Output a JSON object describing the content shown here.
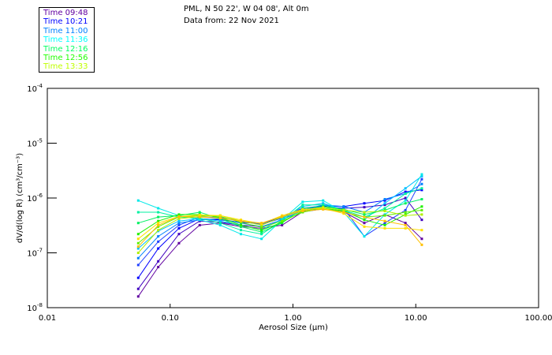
{
  "header": {
    "location": "PML, N 50 22', W 04 08', Alt 0m",
    "date_line": "Data from: 22 Nov 2021"
  },
  "legend": [
    {
      "label": "Time 09:48",
      "color": "#6000a0"
    },
    {
      "label": "Time 10:21",
      "color": "#0000ff"
    },
    {
      "label": "Time 11:00",
      "color": "#0080ff"
    },
    {
      "label": "Time 11:36",
      "color": "#00ffff"
    },
    {
      "label": "Time 12:16",
      "color": "#00ff60"
    },
    {
      "label": "Time 12:56",
      "color": "#20ff00"
    },
    {
      "label": "Time 13:33",
      "color": "#c0ff00"
    }
  ],
  "chart_data": {
    "type": "line",
    "xlabel": "Aerosol Size (μm)",
    "ylabel": "dV/d(log R) (cm³/cm⁻³)",
    "xscale": "log",
    "yscale": "log",
    "xlim": [
      0.01,
      100
    ],
    "ylim": [
      1e-08,
      0.0001
    ],
    "xtick_values": [
      0.01,
      0.1,
      1,
      10,
      100
    ],
    "xtick_labels": [
      "0.01",
      "0.10",
      "1.00",
      "10.00",
      "100.00"
    ],
    "ytick_values": [
      0.0001,
      1e-05,
      1e-06,
      1e-07,
      1e-08
    ],
    "ytick_labels": [
      {
        "base": "10",
        "exp": "-4"
      },
      {
        "base": "10",
        "exp": "-5"
      },
      {
        "base": "10",
        "exp": "-6"
      },
      {
        "base": "10",
        "exp": "-7"
      },
      {
        "base": "10",
        "exp": "-8"
      }
    ],
    "x": [
      0.055,
      0.08,
      0.118,
      0.174,
      0.256,
      0.377,
      0.555,
      0.815,
      1.2,
      1.76,
      2.59,
      3.81,
      5.6,
      8.24,
      11.2
    ],
    "series": [
      {
        "color": "#6000a0",
        "values": [
          1.6e-08,
          5.5e-08,
          1.5e-07,
          3.2e-07,
          3.5e-07,
          3e-07,
          2.8e-07,
          3.2e-07,
          5.6e-07,
          6.3e-07,
          5.6e-07,
          3.5e-07,
          5e-07,
          3.5e-07,
          1.8e-07
        ]
      },
      {
        "color": "#4000c0",
        "values": [
          2.2e-08,
          7e-08,
          2.2e-07,
          3.8e-07,
          3.6e-07,
          3.2e-07,
          3e-07,
          4e-07,
          6e-07,
          7e-07,
          6.5e-07,
          6.8e-07,
          7.5e-07,
          1e-06,
          4e-07
        ]
      },
      {
        "color": "#0000ff",
        "values": [
          3.5e-08,
          1.2e-07,
          2.8e-07,
          4.2e-07,
          4e-07,
          3.6e-07,
          3.4e-07,
          4.5e-07,
          6.5e-07,
          7.2e-07,
          7e-07,
          8e-07,
          9e-07,
          1.3e-06,
          1.4e-06
        ]
      },
      {
        "color": "#2040ff",
        "values": [
          6e-08,
          1.6e-07,
          3.2e-07,
          4.5e-07,
          4.4e-07,
          3.8e-07,
          3.3e-07,
          4.3e-07,
          6.2e-07,
          6.8e-07,
          6.5e-07,
          2e-07,
          3.5e-07,
          6e-07,
          2.2e-06
        ]
      },
      {
        "color": "#0080ff",
        "values": [
          8e-08,
          2e-07,
          3.5e-07,
          4e-07,
          4.2e-07,
          3.5e-07,
          3e-07,
          4e-07,
          6e-07,
          7.5e-07,
          7e-07,
          5.5e-07,
          9.5e-07,
          1.2e-06,
          1.8e-06
        ]
      },
      {
        "color": "#00c0ff",
        "values": [
          1.2e-07,
          2.5e-07,
          3.8e-07,
          4.2e-07,
          3.8e-07,
          3.2e-07,
          2.6e-07,
          4.2e-07,
          7e-07,
          8e-07,
          6e-07,
          4e-07,
          8e-07,
          1.5e-06,
          2.5e-06
        ]
      },
      {
        "color": "#00e8e8",
        "values": [
          9e-07,
          6.5e-07,
          4.8e-07,
          4e-07,
          3.2e-07,
          2.2e-07,
          1.8e-07,
          4e-07,
          8.5e-07,
          9e-07,
          5.5e-07,
          2e-07,
          5e-07,
          9e-07,
          2.7e-06
        ]
      },
      {
        "color": "#00f0a0",
        "values": [
          5.5e-07,
          5.5e-07,
          4.5e-07,
          4.3e-07,
          3.5e-07,
          2.6e-07,
          2.2e-07,
          3.8e-07,
          7.5e-07,
          7.5e-07,
          6e-07,
          4.5e-07,
          6.5e-07,
          1.2e-06,
          1.5e-06
        ]
      },
      {
        "color": "#00f060",
        "values": [
          3.5e-07,
          4.5e-07,
          4.8e-07,
          5.5e-07,
          4.2e-07,
          3e-07,
          2.4e-07,
          3.5e-07,
          6.5e-07,
          7e-07,
          6.2e-07,
          5e-07,
          6e-07,
          8e-07,
          9.5e-07
        ]
      },
      {
        "color": "#20f000",
        "values": [
          2.2e-07,
          3.8e-07,
          5e-07,
          5e-07,
          4.4e-07,
          3.2e-07,
          2.6e-07,
          3.6e-07,
          5.8e-07,
          6.5e-07,
          5.8e-07,
          4e-07,
          3.2e-07,
          5e-07,
          7e-07
        ]
      },
      {
        "color": "#60f000",
        "values": [
          1.5e-07,
          3e-07,
          4.5e-07,
          4.8e-07,
          4.6e-07,
          3.6e-07,
          2.9e-07,
          3.8e-07,
          5.5e-07,
          6.5e-07,
          5.5e-07,
          4.5e-07,
          4.8e-07,
          5.5e-07,
          6e-07
        ]
      },
      {
        "color": "#b0f000",
        "values": [
          1e-07,
          2.6e-07,
          4.2e-07,
          4.6e-07,
          4.8e-07,
          3.8e-07,
          3.2e-07,
          4.5e-07,
          6e-07,
          6.8e-07,
          6e-07,
          5.5e-07,
          5.8e-07,
          4.8e-07,
          5e-07
        ]
      },
      {
        "color": "#ffe000",
        "values": [
          1.8e-07,
          3.5e-07,
          4.6e-07,
          4.9e-07,
          4.8e-07,
          4e-07,
          3.4e-07,
          4.8e-07,
          6.2e-07,
          6.5e-07,
          5.2e-07,
          3e-07,
          2.8e-07,
          2.8e-07,
          2.6e-07
        ]
      },
      {
        "color": "#ffc000",
        "values": [
          1.3e-07,
          3.2e-07,
          4.6e-07,
          4.5e-07,
          4.3e-07,
          3.8e-07,
          3.5e-07,
          4.6e-07,
          5.8e-07,
          6.2e-07,
          5.5e-07,
          4.5e-07,
          3.8e-07,
          3.2e-07,
          1.4e-07
        ]
      }
    ]
  }
}
